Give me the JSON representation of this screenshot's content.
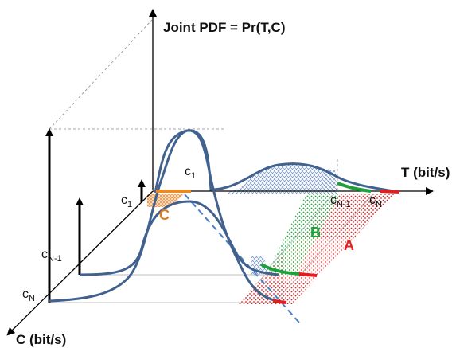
{
  "labels": {
    "z_axis": "Joint PDF = Pr(T,C)",
    "t_axis": "T (bit/s)",
    "c_axis": "C (bit/s)",
    "c1_axis": {
      "base": "c",
      "sub": "1"
    },
    "cn1_axis": {
      "base": "c",
      "sub": "N-1"
    },
    "cn_axis": {
      "base": "c",
      "sub": "N"
    },
    "c1_curve": {
      "base": "c",
      "sub": "1"
    },
    "cn1_tline": {
      "base": "c",
      "sub": "N-1"
    },
    "cn_tline": {
      "base": "c",
      "sub": "N"
    }
  },
  "regions": {
    "a": {
      "label": "A",
      "color": "#e32222"
    },
    "b": {
      "label": "B",
      "color": "#19a63a"
    },
    "c": {
      "label": "C",
      "color": "#e07b22"
    }
  },
  "colors": {
    "curve": "#41618f",
    "hatch": "#5b7fb8",
    "dashed_line": "#4a80c8",
    "red_segment": "#e31d1d",
    "green_segment": "#1ea03a",
    "orange_segment": "#e88a2a"
  }
}
